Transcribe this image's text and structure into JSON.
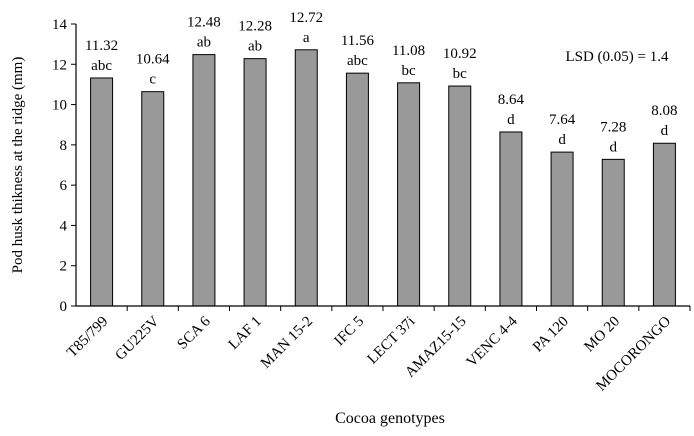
{
  "chart_data": {
    "type": "bar",
    "title": "",
    "xlabel": "Cocoa genotypes",
    "ylabel": "Pod husk thikness at the ridge (mm)",
    "ylim": [
      0,
      14
    ],
    "yticks": [
      0,
      2,
      4,
      6,
      8,
      10,
      12,
      14
    ],
    "ytick_labels": [
      "0",
      "2",
      "4",
      "6",
      "8",
      "10",
      "12",
      "14"
    ],
    "grid": false,
    "categories": [
      "T85/799",
      "GU225V",
      "SCA 6",
      "LAF 1",
      "MAN 15-2",
      "IFC 5",
      "LECT 37i",
      "AMAZ15-15",
      "VENC 4-4",
      "PA 120",
      "MO 20",
      "MOCORONGO"
    ],
    "values": [
      11.32,
      10.64,
      12.48,
      12.28,
      12.72,
      11.56,
      11.08,
      10.92,
      8.64,
      7.64,
      7.28,
      8.08
    ],
    "value_labels": [
      "11.32",
      "10.64",
      "12.48",
      "12.28",
      "12.72",
      "11.56",
      "11.08",
      "10.92",
      "8.64",
      "7.64",
      "7.28",
      "8.08"
    ],
    "letters": [
      "abc",
      "c",
      "ab",
      "ab",
      "a",
      "abc",
      "bc",
      "bc",
      "d",
      "d",
      "d",
      "d"
    ],
    "annotation": "LSD (0.05) = 1.4",
    "bar_color": "#999999",
    "bar_edge_color": "#000000"
  }
}
